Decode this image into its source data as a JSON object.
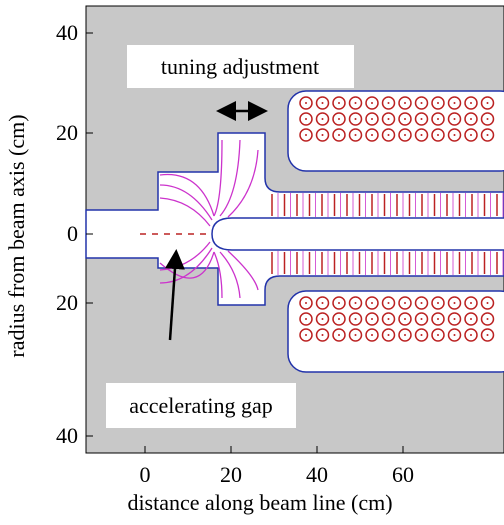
{
  "axes": {
    "x_label": "distance along beam line (cm)",
    "y_label": "radius from beam axis (cm)",
    "x_ticks": [
      "0",
      "20",
      "40",
      "60"
    ],
    "y_ticks": [
      "40",
      "20",
      "0",
      "20",
      "40"
    ]
  },
  "annotations": {
    "tuning": "tuning adjustment",
    "gap": "accelerating gap"
  }
}
